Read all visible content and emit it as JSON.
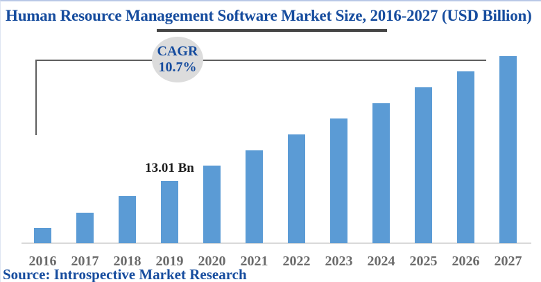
{
  "title": "Human Resource Management Software Market Size, 2016-2027 (USD Billion)",
  "cagr_badge": {
    "label": "CAGR",
    "value": "10.7%"
  },
  "source": "Source: Introspective Market Research",
  "colors": {
    "bar": "#5B9BD5",
    "title_text": "#164C9E",
    "underline": "#454545",
    "connector_line": "#5e5e5e",
    "badge_fill": "#dcdcdc",
    "axis_line": "#d9d9d9",
    "year_label": "#6b6b6b",
    "data_label": "#1c1c1c"
  },
  "chart_data": {
    "type": "bar",
    "title": "Human Resource Management Software Market Size, 2016-2027 (USD Billion)",
    "unit": "USD Billion",
    "categories": [
      "2016",
      "2017",
      "2018",
      "2019",
      "2020",
      "2021",
      "2022",
      "2023",
      "2024",
      "2025",
      "2026",
      "2027"
    ],
    "values": [
      3.18,
      6.36,
      9.83,
      13.01,
      16.19,
      19.37,
      22.7,
      26.02,
      29.2,
      32.53,
      35.85,
      39.03
    ],
    "labeled_point": {
      "category": "2019",
      "label": "13.01 Bn"
    },
    "cagr": "10.7%",
    "xlabel": "",
    "ylabel": "",
    "ylim": [
      0,
      40
    ],
    "grid": false,
    "legend": "none"
  }
}
